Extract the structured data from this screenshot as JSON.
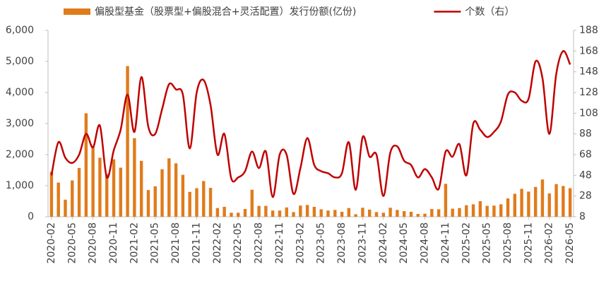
{
  "chart_data": {
    "type": "bar-line",
    "legend": "top",
    "categories": [
      "2020-02",
      null,
      null,
      "2020-05",
      null,
      null,
      "2020-08",
      null,
      null,
      "2020-11",
      null,
      null,
      "2021-02",
      null,
      null,
      "2021-05",
      null,
      null,
      "2021-08",
      null,
      null,
      "2021-11",
      null,
      null,
      "2022-02",
      null,
      null,
      "2022-05",
      null,
      null,
      "2022-08",
      null,
      null,
      "2022-11",
      null,
      null,
      "2023-02",
      null,
      null,
      "2023-05",
      null,
      null,
      "2023-08",
      null,
      null,
      "2023-11",
      null,
      null,
      "2024-02",
      null,
      null,
      "2024-05",
      null,
      null,
      "2024-08",
      null,
      null,
      "2024-11",
      null,
      null,
      "2025-02",
      null,
      null,
      "2025-05",
      null,
      null,
      "2025-08",
      null,
      null,
      "2025-11",
      null,
      null,
      "2026-02",
      null,
      null,
      "2026-05"
    ],
    "series": [
      {
        "name": "偏股型基金（股票型+偏股混合+灵活配置）发行份额(亿份)",
        "type": "bar",
        "color": "#E07B1B",
        "axis": "y",
        "values": [
          1450,
          1100,
          550,
          1170,
          1570,
          3330,
          2260,
          1900,
          1380,
          1850,
          1580,
          4850,
          2530,
          1800,
          860,
          980,
          1530,
          1880,
          1720,
          1350,
          800,
          920,
          1150,
          930,
          280,
          320,
          130,
          130,
          250,
          870,
          350,
          350,
          200,
          200,
          300,
          150,
          360,
          380,
          320,
          240,
          200,
          220,
          160,
          280,
          80,
          290,
          230,
          150,
          130,
          290,
          220,
          180,
          160,
          90,
          100,
          250,
          240,
          1060,
          260,
          280,
          370,
          400,
          500,
          350,
          360,
          400,
          590,
          740,
          900,
          810,
          960,
          1200,
          750,
          1050,
          990,
          920
        ]
      },
      {
        "name": "个数（右）",
        "type": "line",
        "color": "#C00000",
        "axis": "y2",
        "values": [
          48,
          80,
          65,
          60,
          68,
          88,
          75,
          96,
          46,
          72,
          92,
          126,
          90,
          143,
          95,
          88,
          112,
          136,
          131,
          126,
          74,
          128,
          140,
          116,
          68,
          88,
          45,
          46,
          52,
          71,
          55,
          71,
          27,
          68,
          68,
          30,
          55,
          84,
          58,
          52,
          50,
          46,
          50,
          80,
          34,
          85,
          66,
          68,
          28,
          70,
          76,
          62,
          58,
          46,
          54,
          46,
          35,
          71,
          66,
          78,
          48,
          98,
          92,
          85,
          90,
          100,
          126,
          128,
          120,
          122,
          158,
          142,
          88,
          146,
          168,
          155
        ]
      }
    ],
    "ylim": [
      0,
      6000
    ],
    "yticks": [
      0,
      {
        "value": 1000,
        "label": "1,000"
      },
      {
        "value": 2000,
        "label": "2,000"
      },
      {
        "value": 3000,
        "label": "3,000"
      },
      {
        "value": 4000,
        "label": "4,000"
      },
      {
        "value": 5000,
        "label": "5,000"
      },
      {
        "value": 6000,
        "label": "6,000"
      }
    ],
    "y2lim": [
      8,
      188
    ],
    "y2ticks": [
      8,
      28,
      48,
      68,
      88,
      108,
      128,
      148,
      168,
      188
    ]
  }
}
